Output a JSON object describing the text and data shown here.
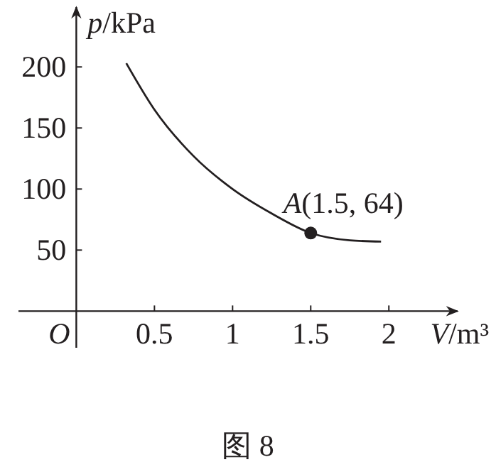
{
  "chart_data": {
    "type": "line",
    "xlabel": "V/m³",
    "ylabel": "p/kPa",
    "xlim": [
      -0.37,
      2.44
    ],
    "ylim": [
      -30,
      249
    ],
    "xticks": [
      {
        "value": 0,
        "label": "O"
      },
      0.5,
      1,
      1.5,
      2
    ],
    "yticks": [
      50,
      100,
      150,
      200
    ],
    "series": [
      {
        "type": "line",
        "color": "#231f20",
        "marker": "none",
        "line_style": "solid",
        "x": [
          0.32,
          0.5,
          0.75,
          1,
          1.25,
          1.5,
          1.75,
          1.95
        ],
        "values": [
          203,
          165,
          127,
          100,
          80,
          64,
          58,
          57
        ]
      },
      {
        "type": "scatter",
        "color": "#231f20",
        "marker": "circle",
        "x": [
          1.5
        ],
        "values": [
          64
        ]
      }
    ],
    "annotations": [
      {
        "text": "A(1.5, 64)",
        "x": 1.5,
        "y": 64
      },
      "图 8"
    ]
  }
}
